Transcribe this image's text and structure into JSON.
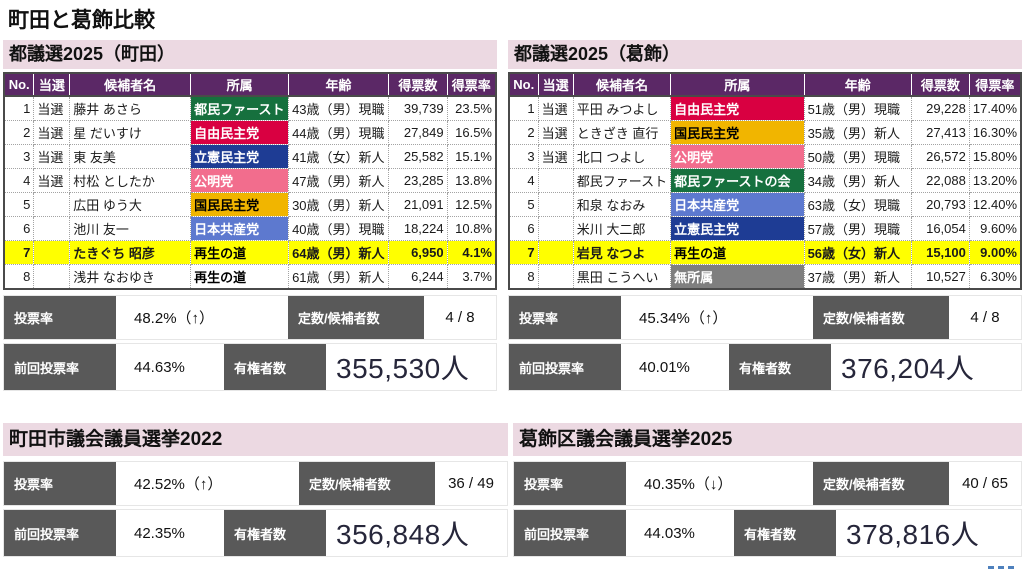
{
  "page_title": "町田と葛飾比較",
  "colors": {
    "header_purple": "#5b2866",
    "band_pink": "#ecd9e2",
    "highlight_yellow": "#ffff00",
    "label_gray": "#595959",
    "big_number": "#26263a",
    "artifact_blue": "#4f81bd",
    "party_tomin_first": "#16703e",
    "party_ldp": "#d90041",
    "party_cdp": "#1e3c94",
    "party_komeito": "#f26d8d",
    "party_dpfp": "#f1b500",
    "party_jcp": "#5d79cf",
    "party_independent": "#7f7f7f"
  },
  "columns": [
    "No.",
    "当選",
    "候補者名",
    "所属",
    "年齢",
    "得票数",
    "得票率"
  ],
  "sections": {
    "machida_togisen": {
      "title": "都議選2025（町田）",
      "rows": [
        {
          "no": "1",
          "win": "当選",
          "name": "藤井 あさら",
          "party": "都民ファースト",
          "party_bg": "#16703e",
          "party_fg": "#ffffff",
          "age": "43歳（男）現職",
          "votes": "39,739",
          "rate": "23.5%",
          "highlight": false
        },
        {
          "no": "2",
          "win": "当選",
          "name": "星 だいすけ",
          "party": "自由民主党",
          "party_bg": "#d90041",
          "party_fg": "#ffffff",
          "age": "44歳（男）現職",
          "votes": "27,849",
          "rate": "16.5%",
          "highlight": false
        },
        {
          "no": "3",
          "win": "当選",
          "name": "東 友美",
          "party": "立憲民主党",
          "party_bg": "#1e3c94",
          "party_fg": "#ffffff",
          "age": "41歳（女）新人",
          "votes": "25,582",
          "rate": "15.1%",
          "highlight": false
        },
        {
          "no": "4",
          "win": "当選",
          "name": "村松 としたか",
          "party": "公明党",
          "party_bg": "#f26d8d",
          "party_fg": "#ffffff",
          "age": "47歳（男）新人",
          "votes": "23,285",
          "rate": "13.8%",
          "highlight": false
        },
        {
          "no": "5",
          "win": "",
          "name": "広田 ゆう大",
          "party": "国民民主党",
          "party_bg": "#f1b500",
          "party_fg": "#000000",
          "age": "30歳（男）新人",
          "votes": "21,091",
          "rate": "12.5%",
          "highlight": false
        },
        {
          "no": "6",
          "win": "",
          "name": "池川 友一",
          "party": "日本共産党",
          "party_bg": "#5d79cf",
          "party_fg": "#ffffff",
          "age": "40歳（男）現職",
          "votes": "18,224",
          "rate": "10.8%",
          "highlight": false
        },
        {
          "no": "7",
          "win": "",
          "name": "たきぐち 昭彦",
          "party": "再生の道",
          "party_bg": "",
          "party_fg": "#000000",
          "age": "64歳（男）新人",
          "votes": "6,950",
          "rate": "4.1%",
          "highlight": true
        },
        {
          "no": "8",
          "win": "",
          "name": "浅井 なおゆき",
          "party": "再生の道",
          "party_bg": "",
          "party_fg": "#000000",
          "age": "61歳（男）新人",
          "votes": "6,244",
          "rate": "3.7%",
          "highlight": false
        }
      ],
      "stats": {
        "turnout_label": "投票率",
        "turnout_value": "48.2%（↑）",
        "seats_label": "定数/候補者数",
        "seats_value": "4 / 8",
        "prev_label": "前回投票率",
        "prev_value": "44.63%",
        "voters_label": "有権者数",
        "voters_value": "355,530人"
      }
    },
    "katsushika_togisen": {
      "title": "都議選2025（葛飾）",
      "rows": [
        {
          "no": "1",
          "win": "当選",
          "name": "平田 みつよし",
          "party": "自由民主党",
          "party_bg": "#d90041",
          "party_fg": "#ffffff",
          "age": "51歳（男）現職",
          "votes": "29,228",
          "rate": "17.40%",
          "highlight": false
        },
        {
          "no": "2",
          "win": "当選",
          "name": "ときざき 直行",
          "party": "国民民主党",
          "party_bg": "#f1b500",
          "party_fg": "#000000",
          "age": "35歳（男）新人",
          "votes": "27,413",
          "rate": "16.30%",
          "highlight": false
        },
        {
          "no": "3",
          "win": "当選",
          "name": "北口 つよし",
          "party": "公明党",
          "party_bg": "#f26d8d",
          "party_fg": "#ffffff",
          "age": "50歳（男）現職",
          "votes": "26,572",
          "rate": "15.80%",
          "highlight": false
        },
        {
          "no": "4",
          "win": "",
          "name": "都民ファースト",
          "party": "都民ファーストの会",
          "party_bg": "#16703e",
          "party_fg": "#ffffff",
          "age": "34歳（男）新人",
          "votes": "22,088",
          "rate": "13.20%",
          "highlight": false
        },
        {
          "no": "5",
          "win": "",
          "name": "和泉 なおみ",
          "party": "日本共産党",
          "party_bg": "#5d79cf",
          "party_fg": "#ffffff",
          "age": "63歳（女）現職",
          "votes": "20,793",
          "rate": "12.40%",
          "highlight": false
        },
        {
          "no": "6",
          "win": "",
          "name": "米川 大二郎",
          "party": "立憲民主党",
          "party_bg": "#1e3c94",
          "party_fg": "#ffffff",
          "age": "57歳（男）現職",
          "votes": "16,054",
          "rate": "9.60%",
          "highlight": false
        },
        {
          "no": "7",
          "win": "",
          "name": "岩見 なつよ",
          "party": "再生の道",
          "party_bg": "",
          "party_fg": "#000000",
          "age": "56歳（女）新人",
          "votes": "15,100",
          "rate": "9.00%",
          "highlight": true
        },
        {
          "no": "8",
          "win": "",
          "name": "黒田 こうへい",
          "party": "無所属",
          "party_bg": "#7f7f7f",
          "party_fg": "#ffffff",
          "age": "37歳（男）新人",
          "votes": "10,527",
          "rate": "6.30%",
          "highlight": false
        }
      ],
      "stats": {
        "turnout_label": "投票率",
        "turnout_value": "45.34%（↑）",
        "seats_label": "定数/候補者数",
        "seats_value": "4 / 8",
        "prev_label": "前回投票率",
        "prev_value": "40.01%",
        "voters_label": "有権者数",
        "voters_value": "376,204人"
      }
    },
    "machida_shigisen": {
      "title": "町田市議会議員選挙2022",
      "stats": {
        "turnout_label": "投票率",
        "turnout_value": "42.52%（↑）",
        "seats_label": "定数/候補者数",
        "seats_value": "36 / 49",
        "prev_label": "前回投票率",
        "prev_value": "42.35%",
        "voters_label": "有権者数",
        "voters_value": "356,848人"
      }
    },
    "katsushika_kugisen": {
      "title": "葛飾区議会議員選挙2025",
      "stats": {
        "turnout_label": "投票率",
        "turnout_value": "40.35%（↓）",
        "seats_label": "定数/候補者数",
        "seats_value": "40 / 65",
        "prev_label": "前回投票率",
        "prev_value": "44.03%",
        "voters_label": "有権者数",
        "voters_value": "378,816人"
      }
    }
  }
}
